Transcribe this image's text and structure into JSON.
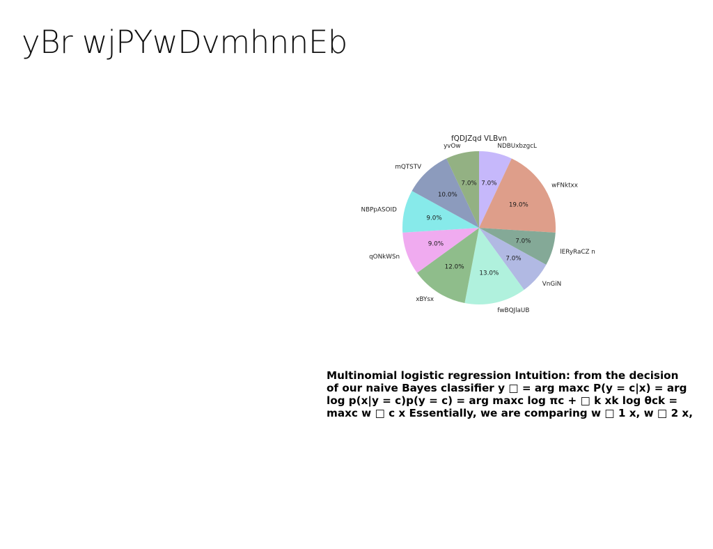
{
  "page": {
    "title": "yBr wjPYwDvmhnnEb",
    "body_lines": [
      "Multinomial logistic regression Intuition: from the decision",
      "of our naive Bayes classifier y □ = arg maxc P(y = c|x) = arg",
      "log p(x|y = c)p(y = c) = arg maxc log πc + □ k xk log θck =",
      "maxc w □ c x Essentially, we are comparing w □ 1 x, w □ 2 x,"
    ]
  },
  "chart_data": {
    "type": "pie",
    "title": "fQDJZqd VLBvn",
    "start_angle_deg": 90,
    "direction": "clockwise",
    "slices": [
      {
        "label": "NDBUxbzgcL",
        "value": 7.0,
        "pct_label": "7.0%",
        "color": "#c6b8fb"
      },
      {
        "label": "wFNktxx",
        "value": 19.0,
        "pct_label": "19.0%",
        "color": "#de9e8a"
      },
      {
        "label": "lERyRaCZ n",
        "value": 7.0,
        "pct_label": "7.0%",
        "color": "#84a997"
      },
      {
        "label": "VnGiN",
        "value": 7.0,
        "pct_label": "7.0%",
        "color": "#b1b9e3"
      },
      {
        "label": "fwBQJlaUB",
        "value": 13.0,
        "pct_label": "13.0%",
        "color": "#b0f1dd"
      },
      {
        "label": "xBYsx",
        "value": 12.0,
        "pct_label": "12.0%",
        "color": "#8fbd8b"
      },
      {
        "label": "qONkWSn",
        "value": 9.0,
        "pct_label": "9.0%",
        "color": "#f0abf0"
      },
      {
        "label": "NBPpASOID",
        "value": 9.0,
        "pct_label": "9.0%",
        "color": "#87eaea"
      },
      {
        "label": "mQTSTV",
        "value": 10.0,
        "pct_label": "10.0%",
        "color": "#8c9bbd"
      },
      {
        "label": "yvOw",
        "value": 7.0,
        "pct_label": "7.0%",
        "color": "#93b183"
      }
    ]
  }
}
